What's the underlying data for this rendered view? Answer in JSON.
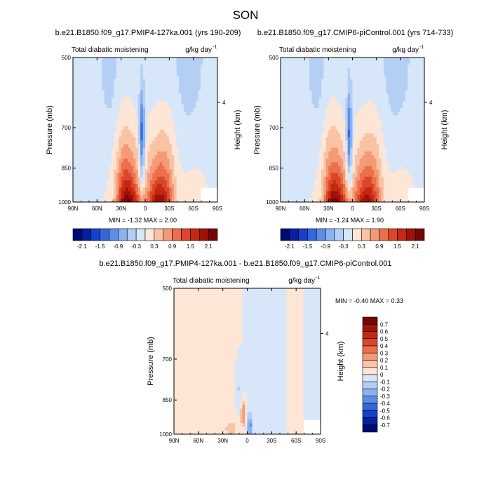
{
  "page_title": "SON",
  "colors": {
    "neg": [
      "#d7e6f9",
      "#b4cff4",
      "#8bb2ee",
      "#5e8de6",
      "#3467dd",
      "#1341c9",
      "#0421a1",
      "#000a74"
    ],
    "pos": [
      "#fde6d6",
      "#f9c3a4",
      "#f49b76",
      "#ec6f4c",
      "#dd4528",
      "#c22812",
      "#a01206",
      "#760505"
    ]
  },
  "chart_data": [
    {
      "type": "heatmap",
      "title": "b.e21.B1850.f09_g17.PMIP4-127ka.001 (yrs 190-209)",
      "left_label": "Total diabatic moistening",
      "units": "g/kg day",
      "units_exp": "-1",
      "ylabel": "Pressure (mb)",
      "ylabel_right": "Height (km)",
      "x_ticks": [
        "90N",
        "60N",
        "30N",
        "0",
        "30S",
        "60S",
        "90S"
      ],
      "y_ticks": [
        "500",
        "700",
        "850",
        "1000"
      ],
      "y_ticks_right": [
        "4"
      ],
      "x_range": [
        90,
        -90
      ],
      "y_range": [
        500,
        1000
      ],
      "y_scale": "log",
      "min_max": "MIN = -1.32   MAX =  2.00",
      "colorbar_labels": [
        "-2.1",
        "-1.5",
        "-0.9",
        "-0.3",
        "0.3",
        "0.9",
        "1.5",
        "2.1"
      ],
      "levels": [
        -2.1,
        -1.8,
        -1.5,
        -1.2,
        -0.9,
        -0.6,
        -0.3,
        0,
        0.3,
        0.6,
        0.9,
        1.2,
        1.5,
        1.8,
        2.1
      ],
      "min": -1.32,
      "max": 2.0
    },
    {
      "type": "heatmap",
      "title": "b.e21.B1850.f09_g17.CMIP6-piControl.001 (yrs 714-733)",
      "left_label": "Total diabatic moistening",
      "units": "g/kg day",
      "units_exp": "-1",
      "ylabel": "Pressure (mb)",
      "ylabel_right": "Height (km)",
      "x_ticks": [
        "90N",
        "60N",
        "30N",
        "0",
        "30S",
        "60S",
        "90S"
      ],
      "y_ticks": [
        "500",
        "700",
        "850",
        "1000"
      ],
      "y_ticks_right": [
        "4"
      ],
      "x_range": [
        90,
        -90
      ],
      "y_range": [
        500,
        1000
      ],
      "y_scale": "log",
      "min_max": "MIN = -1.24   MAX =  1.90",
      "colorbar_labels": [
        "-2.1",
        "-1.5",
        "-0.9",
        "-0.3",
        "0.3",
        "0.9",
        "1.5",
        "2.1"
      ],
      "levels": [
        -2.1,
        -1.8,
        -1.5,
        -1.2,
        -0.9,
        -0.6,
        -0.3,
        0,
        0.3,
        0.6,
        0.9,
        1.2,
        1.5,
        1.8,
        2.1
      ],
      "min": -1.24,
      "max": 1.9
    },
    {
      "type": "heatmap",
      "title": "b.e21.B1850.f09_g17.PMIP4-127ka.001 - b.e21.B1850.f09_g17.CMIP6-piControl.001",
      "left_label": "Total diabatic moistening",
      "units": "g/kg day",
      "units_exp": "-1",
      "ylabel": "Pressure (mb)",
      "ylabel_right": "Height (km)",
      "x_ticks": [
        "90N",
        "60N",
        "30N",
        "0",
        "30S",
        "60S",
        "90S"
      ],
      "y_ticks": [
        "500",
        "700",
        "850",
        "1000"
      ],
      "y_ticks_right": [
        "4"
      ],
      "x_range": [
        90,
        -90
      ],
      "y_range": [
        500,
        1000
      ],
      "y_scale": "log",
      "min_max": "MIN = -0.40   MAX =  0.33",
      "colorbar_labels": [
        "0.7",
        "0.6",
        "0.5",
        "0.4",
        "0.3",
        "0.2",
        "0.1",
        "0",
        "-0.1",
        "-0.2",
        "-0.3",
        "-0.4",
        "-0.5",
        "-0.6",
        "-0.7"
      ],
      "levels": [
        -0.7,
        -0.6,
        -0.5,
        -0.4,
        -0.3,
        -0.2,
        -0.1,
        0,
        0.1,
        0.2,
        0.3,
        0.4,
        0.5,
        0.6,
        0.7
      ],
      "min": -0.4,
      "max": 0.33
    }
  ]
}
